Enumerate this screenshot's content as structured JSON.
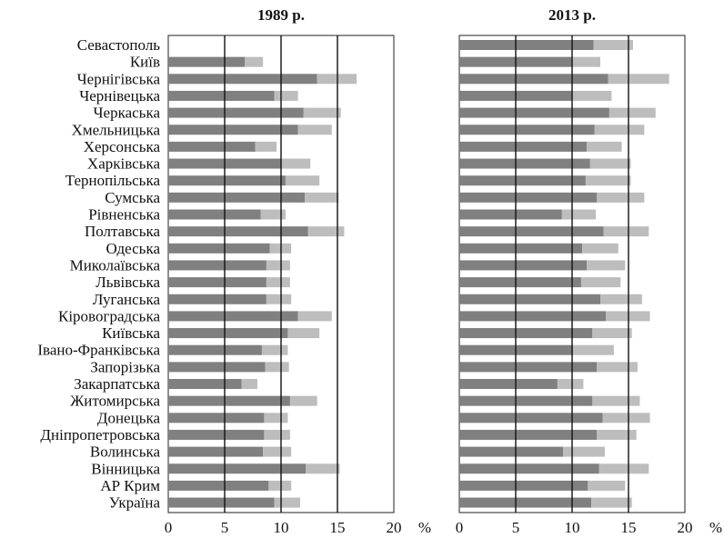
{
  "chart_data": [
    {
      "type": "bar",
      "stacked": true,
      "orientation": "horizontal",
      "title": "1989 р.",
      "unit": "%",
      "xlim": [
        0,
        20
      ],
      "xticks": [
        0,
        5,
        10,
        15,
        20
      ],
      "gridlines": [
        5,
        10,
        15
      ],
      "categories": [
        "Севастополь",
        "Київ",
        "Чернігівська",
        "Чернівецька",
        "Черкаська",
        "Хмельницька",
        "Херсонська",
        "Харківська",
        "Тернопільська",
        "Сумська",
        "Рівненська",
        "Полтавська",
        "Одеська",
        "Миколаївська",
        "Львівська",
        "Луганська",
        "Кіровоградська",
        "Київська",
        "Івано-Франківська",
        "Запорізька",
        "Закарпатська",
        "Житомирська",
        "Донецька",
        "Дніпропетровська",
        "Волинська",
        "Вінницька",
        "АР Крим",
        "Україна"
      ],
      "series": [
        {
          "color": "#808080",
          "values": [
            0,
            6.8,
            13.2,
            9.4,
            12.0,
            11.5,
            7.7,
            10.0,
            10.4,
            12.1,
            8.2,
            12.4,
            9.0,
            8.7,
            8.7,
            8.7,
            11.5,
            10.6,
            8.3,
            8.6,
            6.5,
            10.8,
            8.5,
            8.5,
            8.4,
            12.2,
            8.9,
            9.4
          ]
        },
        {
          "color": "#bdbdbd",
          "values": [
            0,
            1.6,
            3.5,
            2.1,
            3.3,
            3.0,
            1.9,
            2.6,
            3.0,
            3.0,
            2.2,
            3.2,
            1.9,
            2.1,
            2.1,
            2.2,
            3.0,
            2.8,
            2.3,
            2.1,
            1.4,
            2.4,
            2.1,
            2.3,
            2.5,
            3.0,
            2.0,
            2.3
          ]
        }
      ]
    },
    {
      "type": "bar",
      "stacked": true,
      "orientation": "horizontal",
      "title": "2013 р.",
      "unit": "%",
      "xlim": [
        0,
        20
      ],
      "xticks": [
        0,
        5,
        10,
        15,
        20
      ],
      "gridlines": [
        5,
        10,
        15
      ],
      "categories": [
        "Севастополь",
        "Київ",
        "Чернігівська",
        "Чернівецька",
        "Черкаська",
        "Хмельницька",
        "Херсонська",
        "Харківська",
        "Тернопільська",
        "Сумська",
        "Рівненська",
        "Полтавська",
        "Одеська",
        "Миколаївська",
        "Львівська",
        "Луганська",
        "Кіровоградська",
        "Київська",
        "Івано-Франківська",
        "Запорізька",
        "Закарпатська",
        "Житомирська",
        "Донецька",
        "Дніпропетровська",
        "Волинська",
        "Вінницька",
        "АР Крим",
        "Україна"
      ],
      "series": [
        {
          "color": "#808080",
          "values": [
            11.9,
            10.0,
            13.2,
            10.0,
            13.3,
            12.0,
            11.3,
            11.6,
            11.2,
            12.2,
            9.1,
            12.8,
            10.9,
            11.3,
            10.8,
            12.5,
            13.0,
            11.8,
            10.1,
            12.2,
            8.7,
            11.8,
            12.7,
            12.2,
            9.2,
            12.4,
            11.4,
            11.7
          ]
        },
        {
          "color": "#bdbdbd",
          "values": [
            3.5,
            2.5,
            5.4,
            3.5,
            4.1,
            4.4,
            3.1,
            3.6,
            4.0,
            4.2,
            3.0,
            4.0,
            3.2,
            3.4,
            3.5,
            3.7,
            3.9,
            3.5,
            3.6,
            3.6,
            2.3,
            4.2,
            4.2,
            3.5,
            3.7,
            4.4,
            3.3,
            3.6
          ]
        }
      ]
    }
  ]
}
